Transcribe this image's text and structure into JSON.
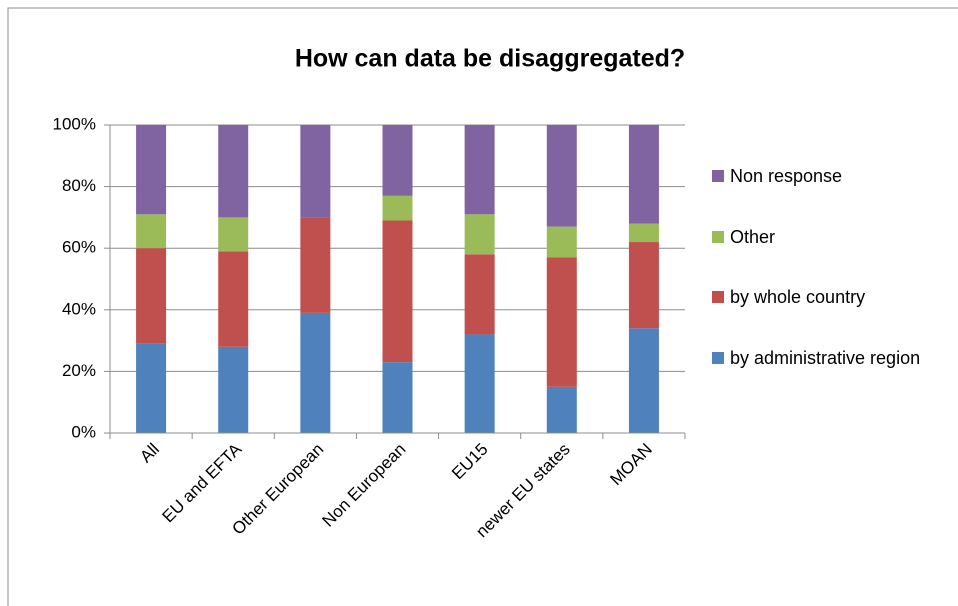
{
  "chart_data": {
    "type": "stacked_bar",
    "title": "How can data be disaggregated?",
    "categories": [
      "All",
      "EU and EFTA",
      "Other European",
      "Non European",
      "EU15",
      "newer EU states",
      "MOAN"
    ],
    "series": [
      {
        "name": "by administrative region",
        "color": "#4f81bd",
        "values": [
          29,
          28,
          39,
          23,
          32,
          15,
          34
        ]
      },
      {
        "name": "by whole country",
        "color": "#c0504d",
        "values": [
          31,
          31,
          31,
          46,
          26,
          42,
          28
        ]
      },
      {
        "name": "Other",
        "color": "#9bbb59",
        "values": [
          11,
          11,
          0,
          8,
          13,
          10,
          6
        ]
      },
      {
        "name": "Non response",
        "color": "#8064a2",
        "values": [
          29,
          30,
          30,
          23,
          29,
          33,
          32
        ]
      }
    ],
    "ylim": [
      0,
      100
    ],
    "yticks": [
      {
        "value": 0,
        "label": "0%"
      },
      {
        "value": 20,
        "label": "20%"
      },
      {
        "value": 40,
        "label": "40%"
      },
      {
        "value": 60,
        "label": "60%"
      },
      {
        "value": 80,
        "label": "80%"
      },
      {
        "value": 100,
        "label": "100%"
      }
    ],
    "grid": true,
    "legend": "right"
  }
}
